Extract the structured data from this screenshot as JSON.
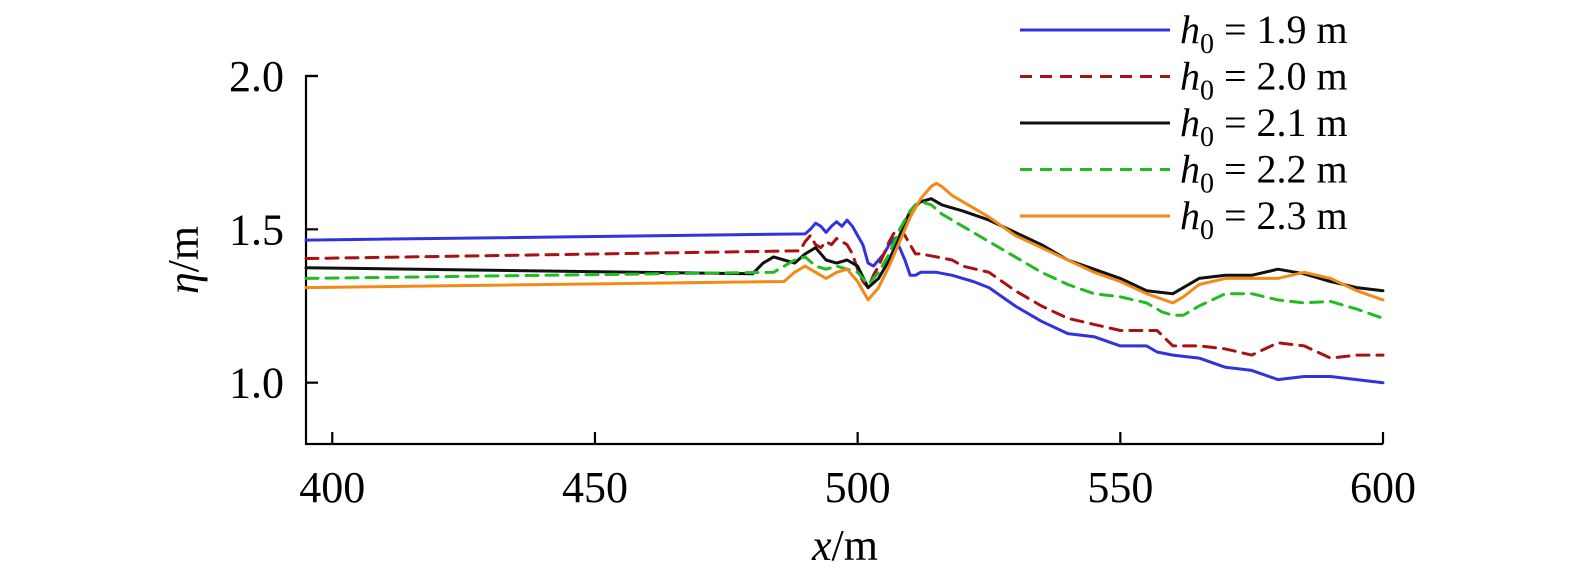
{
  "chart_data": {
    "type": "line",
    "title": "",
    "xlabel": {
      "var": "x",
      "unit": "/m"
    },
    "ylabel": {
      "var": "η",
      "unit": "/m"
    },
    "xlim": [
      395,
      600
    ],
    "ylim": [
      0.8,
      2.0
    ],
    "xticks": [
      400,
      450,
      500,
      550,
      600
    ],
    "yticks": [
      1.0,
      1.5,
      2.0
    ],
    "xtick_labels": [
      "400",
      "450",
      "500",
      "550",
      "600"
    ],
    "ytick_labels": [
      "1.0",
      "1.5",
      "2.0"
    ],
    "grid": false,
    "legend_position": "top-right",
    "series": [
      {
        "name": "h0 = 1.9 m",
        "legend": {
          "var": "h",
          "sub": "0",
          "rest": " = 1.9 m"
        },
        "color": "#3333dd",
        "dash": "solid",
        "x": [
          395,
          490,
          491,
          492,
          493,
          494,
          495,
          496,
          497,
          498,
          499,
          500,
          501,
          502,
          503,
          504,
          505,
          506,
          507,
          508,
          509,
          510,
          511,
          512,
          515,
          518,
          520,
          522,
          525,
          530,
          535,
          540,
          545,
          550,
          555,
          557,
          560,
          565,
          570,
          575,
          580,
          585,
          590,
          595,
          600
        ],
        "y": [
          1.465,
          1.485,
          1.5,
          1.52,
          1.51,
          1.49,
          1.51,
          1.525,
          1.51,
          1.53,
          1.51,
          1.48,
          1.45,
          1.39,
          1.38,
          1.4,
          1.42,
          1.45,
          1.47,
          1.44,
          1.4,
          1.35,
          1.35,
          1.36,
          1.36,
          1.35,
          1.34,
          1.33,
          1.31,
          1.25,
          1.2,
          1.16,
          1.15,
          1.12,
          1.12,
          1.1,
          1.09,
          1.08,
          1.05,
          1.04,
          1.01,
          1.02,
          1.02,
          1.01,
          1.0
        ]
      },
      {
        "name": "h0 = 2.0 m",
        "legend": {
          "var": "h",
          "sub": "0",
          "rest": " = 2.0 m"
        },
        "color": "#aa1111",
        "dash": "dashed",
        "x": [
          395,
          489,
          490,
          491,
          492,
          493,
          494,
          495,
          496,
          497,
          498,
          499,
          500,
          501,
          502,
          503,
          504,
          505,
          506,
          507,
          508,
          509,
          510,
          511,
          512,
          515,
          518,
          520,
          525,
          530,
          535,
          540,
          545,
          550,
          555,
          557,
          560,
          565,
          570,
          575,
          580,
          585,
          590,
          595,
          600
        ],
        "y": [
          1.405,
          1.43,
          1.46,
          1.48,
          1.45,
          1.44,
          1.46,
          1.45,
          1.47,
          1.46,
          1.45,
          1.42,
          1.37,
          1.33,
          1.31,
          1.35,
          1.38,
          1.42,
          1.46,
          1.49,
          1.5,
          1.48,
          1.45,
          1.42,
          1.42,
          1.41,
          1.4,
          1.38,
          1.36,
          1.3,
          1.25,
          1.21,
          1.19,
          1.17,
          1.17,
          1.17,
          1.12,
          1.12,
          1.11,
          1.09,
          1.13,
          1.12,
          1.08,
          1.09,
          1.09
        ]
      },
      {
        "name": "h0 = 2.1 m",
        "legend": {
          "var": "h",
          "sub": "0",
          "rest": " = 2.1 m"
        },
        "color": "#111111",
        "dash": "solid",
        "x": [
          395,
          480,
          482,
          484,
          486,
          488,
          490,
          492,
          494,
          496,
          498,
          500,
          502,
          504,
          506,
          508,
          510,
          512,
          514,
          516,
          518,
          520,
          525,
          530,
          535,
          540,
          545,
          550,
          555,
          560,
          565,
          570,
          575,
          580,
          585,
          590,
          595,
          600
        ],
        "y": [
          1.375,
          1.355,
          1.39,
          1.41,
          1.4,
          1.39,
          1.42,
          1.44,
          1.4,
          1.39,
          1.4,
          1.38,
          1.31,
          1.34,
          1.4,
          1.48,
          1.56,
          1.59,
          1.6,
          1.58,
          1.57,
          1.56,
          1.53,
          1.49,
          1.45,
          1.4,
          1.37,
          1.34,
          1.3,
          1.29,
          1.34,
          1.35,
          1.35,
          1.37,
          1.355,
          1.33,
          1.31,
          1.3
        ]
      },
      {
        "name": "h0 = 2.2 m",
        "legend": {
          "var": "h",
          "sub": "0",
          "rest": " = 2.2 m"
        },
        "color": "#22bb22",
        "dash": "dashed",
        "x": [
          395,
          484,
          486,
          488,
          490,
          492,
          494,
          496,
          498,
          500,
          502,
          504,
          506,
          508,
          510,
          511,
          512,
          514,
          516,
          518,
          520,
          525,
          530,
          535,
          540,
          545,
          550,
          555,
          558,
          560,
          562,
          565,
          570,
          575,
          580,
          585,
          590,
          595,
          600
        ],
        "y": [
          1.34,
          1.36,
          1.38,
          1.4,
          1.41,
          1.38,
          1.37,
          1.38,
          1.37,
          1.36,
          1.32,
          1.36,
          1.42,
          1.5,
          1.56,
          1.58,
          1.59,
          1.58,
          1.55,
          1.53,
          1.51,
          1.46,
          1.41,
          1.36,
          1.32,
          1.29,
          1.28,
          1.26,
          1.23,
          1.22,
          1.22,
          1.25,
          1.29,
          1.29,
          1.27,
          1.26,
          1.265,
          1.24,
          1.21
        ]
      },
      {
        "name": "h0 = 2.3 m",
        "legend": {
          "var": "h",
          "sub": "0",
          "rest": " = 2.3 m"
        },
        "color": "#f28a17",
        "dash": "solid",
        "x": [
          395,
          486,
          488,
          490,
          492,
          494,
          496,
          498,
          500,
          502,
          504,
          506,
          508,
          510,
          512,
          514,
          515,
          516,
          518,
          520,
          525,
          530,
          535,
          540,
          545,
          550,
          555,
          560,
          562,
          565,
          570,
          575,
          580,
          585,
          590,
          595,
          600
        ],
        "y": [
          1.31,
          1.33,
          1.36,
          1.38,
          1.36,
          1.34,
          1.36,
          1.37,
          1.33,
          1.27,
          1.31,
          1.38,
          1.46,
          1.54,
          1.6,
          1.64,
          1.65,
          1.64,
          1.61,
          1.59,
          1.54,
          1.48,
          1.44,
          1.4,
          1.36,
          1.33,
          1.29,
          1.26,
          1.28,
          1.32,
          1.34,
          1.34,
          1.34,
          1.36,
          1.34,
          1.3,
          1.27
        ]
      }
    ]
  }
}
